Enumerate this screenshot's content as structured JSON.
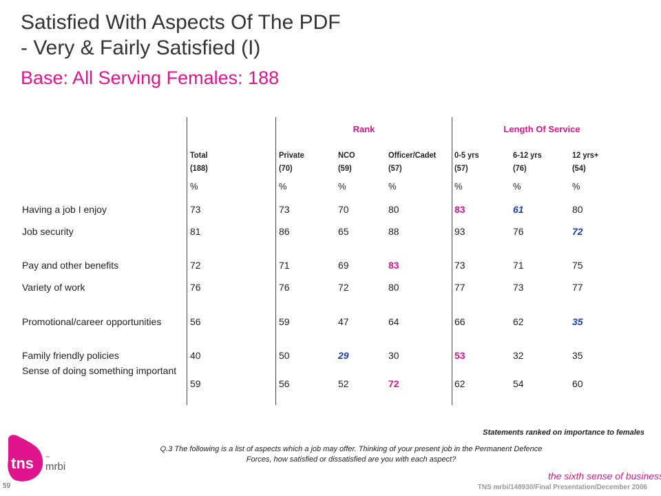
{
  "header": {
    "title_line1": "Satisfied With Aspects Of The PDF",
    "title_line2": "- Very & Fairly Satisfied (I)",
    "subtitle": "Base:  All Serving Females:  188"
  },
  "table": {
    "group_rank": "Rank",
    "group_service": "Length Of Service",
    "columns": [
      {
        "label": "Total",
        "base": "(188)",
        "unit": "%"
      },
      {
        "label": "Private",
        "base": "(70)",
        "unit": "%"
      },
      {
        "label": "NCO",
        "base": "(59)",
        "unit": "%"
      },
      {
        "label": "Officer/Cadet",
        "base": "(57)",
        "unit": "%"
      },
      {
        "label": "0-5 yrs",
        "base": "(57)",
        "unit": "%"
      },
      {
        "label": "6-12 yrs",
        "base": "(76)",
        "unit": "%"
      },
      {
        "label": "12 yrs+",
        "base": "(54)",
        "unit": "%"
      }
    ],
    "rows": [
      {
        "label": "Having a job I enjoy",
        "values": [
          "73",
          "73",
          "70",
          "80",
          "83",
          "61",
          "80"
        ],
        "flags": [
          "",
          "",
          "",
          "",
          "hi",
          "lo",
          ""
        ]
      },
      {
        "label": "Job security",
        "values": [
          "81",
          "86",
          "65",
          "88",
          "93",
          "76",
          "72"
        ],
        "flags": [
          "",
          "",
          "",
          "",
          "",
          "",
          "lo"
        ]
      },
      {
        "label": "Pay and other benefits",
        "values": [
          "72",
          "71",
          "69",
          "83",
          "73",
          "71",
          "75"
        ],
        "flags": [
          "",
          "",
          "",
          "hi",
          "",
          "",
          ""
        ]
      },
      {
        "label": "Variety of work",
        "values": [
          "76",
          "76",
          "72",
          "80",
          "77",
          "73",
          "77"
        ],
        "flags": [
          "",
          "",
          "",
          "",
          "",
          "",
          ""
        ]
      },
      {
        "label": "Promotional/career opportunities",
        "values": [
          "56",
          "59",
          "47",
          "64",
          "66",
          "62",
          "35"
        ],
        "flags": [
          "",
          "",
          "",
          "",
          "",
          "",
          "lo"
        ]
      },
      {
        "label": "Family friendly policies",
        "values": [
          "40",
          "50",
          "29",
          "30",
          "53",
          "32",
          "35"
        ],
        "flags": [
          "",
          "",
          "lo",
          "",
          "hi",
          "",
          ""
        ]
      },
      {
        "label": "Sense of doing something important",
        "values": [
          "59",
          "56",
          "52",
          "72",
          "62",
          "54",
          "60"
        ],
        "flags": [
          "",
          "",
          "",
          "hi",
          "",
          "",
          ""
        ]
      }
    ]
  },
  "notes": {
    "ranked": "Statements ranked on importance to females",
    "question": "Q.3  The following is a list of aspects which a job may offer. Thinking of your present job in the Permanent Defence Forces, how satisfied or dissatisfied are you with each aspect?"
  },
  "footer": {
    "page_number": "59",
    "logo_text": "tns",
    "logo_sub": "mrbi",
    "logo_tm": "™",
    "tagline": "the sixth sense of business",
    "tagline_tm": "™",
    "reference": "TNS mrbi/148930/Final Presentation/December 2006",
    "brand_color": "#e0148c"
  }
}
